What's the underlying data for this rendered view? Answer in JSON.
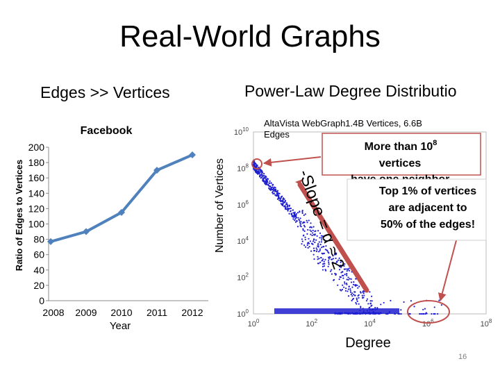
{
  "slide": {
    "title": "Real-World Graphs",
    "left_heading": "Edges >> Vertices",
    "right_heading": "Power-Law Degree Distributio",
    "page_number": "16"
  },
  "colors": {
    "facebook_line": "#4f81bd",
    "scatter": "#1f1fd0",
    "slope_line": "#c0504d",
    "callout_border": "#c0504d",
    "circle": "#c0504d"
  },
  "chart_data": [
    {
      "type": "line",
      "title": "Facebook",
      "xlabel": "Year",
      "ylabel": "Ratio of Edges to Vertices",
      "categories": [
        "2008",
        "2009",
        "2010",
        "2011",
        "2012"
      ],
      "series": [
        {
          "values": [
            77,
            90,
            115,
            170,
            190
          ]
        }
      ],
      "ylim": [
        0,
        200
      ],
      "yticks": [
        "0",
        "20",
        "40",
        "60",
        "80",
        "100",
        "120",
        "140",
        "160",
        "180",
        "200"
      ],
      "grid": false
    },
    {
      "type": "scatter",
      "title": "",
      "xlabel": "Degree",
      "ylabel": "Number of Vertices",
      "x_scale": "log",
      "y_scale": "log",
      "xlim": [
        1,
        100000000
      ],
      "ylim": [
        1,
        10000000000
      ],
      "xticks": [
        {
          "base": "10",
          "exp": "0"
        },
        {
          "base": "10",
          "exp": "2"
        },
        {
          "base": "10",
          "exp": "4"
        },
        {
          "base": "10",
          "exp": "6"
        },
        {
          "base": "10",
          "exp": "8"
        }
      ],
      "yticks": [
        {
          "base": "10",
          "exp": "0"
        },
        {
          "base": "10",
          "exp": "2"
        },
        {
          "base": "10",
          "exp": "4"
        },
        {
          "base": "10",
          "exp": "6"
        },
        {
          "base": "10",
          "exp": "8"
        },
        {
          "base": "10",
          "exp": "10"
        }
      ],
      "annotations": {
        "dataset": "AltaVista WebGraph1.4B Vertices, 6.6B Edges",
        "slope": "-Slope = α ≈ 2",
        "callout": "More than 10⁸ vertices have one neighbor.",
        "callout_lines": [
          "More than 10",
          "vertices",
          "have one neighbor."
        ],
        "callout_sup": "8",
        "note_lines": [
          "Top 1% of vertices",
          "are adjacent to",
          "50% of the edges!"
        ]
      }
    }
  ]
}
